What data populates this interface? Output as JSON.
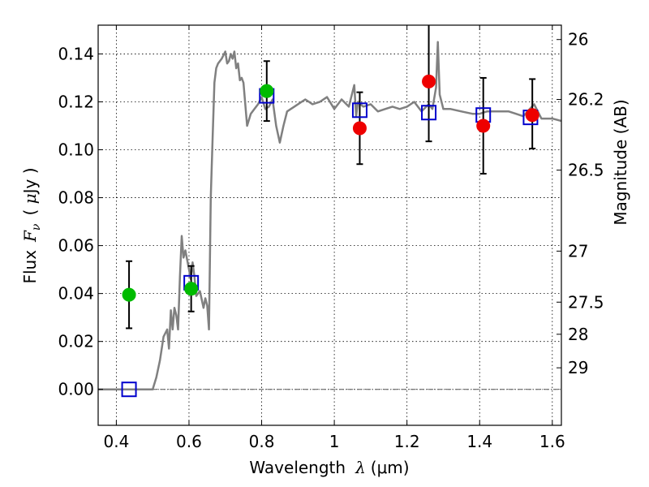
{
  "chart_data": {
    "type": "scatter",
    "xlabel": "Wavelength  λ (μm)",
    "ylabel": "Flux  F_ν  ( μJy )",
    "ylabel_parts": {
      "prefix": "Flux",
      "var": "F",
      "sub": "ν",
      "unit_open": "( ",
      "unit_mu": "μ",
      "unit_rest": "Jy )"
    },
    "xlabel_parts": {
      "prefix": "Wavelength",
      "var": "λ",
      "unit": "(μm)"
    },
    "y2label": "Magnitude (AB)",
    "xlim": [
      0.35,
      1.625
    ],
    "ylim": [
      -0.015,
      0.152
    ],
    "grid": true,
    "x_ticks": [
      {
        "value": 0.4,
        "label": "0.4"
      },
      {
        "value": 0.6,
        "label": "0.6"
      },
      {
        "value": 0.8,
        "label": "0.8"
      },
      {
        "value": 1.0,
        "label": "1"
      },
      {
        "value": 1.2,
        "label": "1.2"
      },
      {
        "value": 1.4,
        "label": "1.4"
      },
      {
        "value": 1.6,
        "label": "1.6"
      }
    ],
    "y_ticks": [
      {
        "value": 0.0,
        "label": "0.00"
      },
      {
        "value": 0.02,
        "label": "0.02"
      },
      {
        "value": 0.04,
        "label": "0.04"
      },
      {
        "value": 0.06,
        "label": "0.06"
      },
      {
        "value": 0.08,
        "label": "0.08"
      },
      {
        "value": 0.1,
        "label": "0.10"
      },
      {
        "value": 0.12,
        "label": "0.12"
      },
      {
        "value": 0.14,
        "label": "0.14"
      }
    ],
    "mag_ticks": [
      {
        "flux": 0.146,
        "label": "26"
      },
      {
        "flux": 0.121,
        "label": "26.2"
      },
      {
        "flux": 0.0915,
        "label": "26.5"
      },
      {
        "flux": 0.0577,
        "label": "27"
      },
      {
        "flux": 0.0364,
        "label": "27.5"
      },
      {
        "flux": 0.023,
        "label": "28"
      },
      {
        "flux": 0.009,
        "label": "29"
      }
    ],
    "colors": {
      "model": "#808080",
      "model_points": "#0000cc",
      "green_points": "#00bb00",
      "red_points": "#ee0000",
      "error_bars": "#000000",
      "zero_line": "#555555"
    },
    "series": [
      {
        "kind": "model_spectrum",
        "x": [
          0.35,
          0.4,
          0.45,
          0.5,
          0.51,
          0.52,
          0.53,
          0.54,
          0.545,
          0.55,
          0.555,
          0.56,
          0.565,
          0.57,
          0.575,
          0.58,
          0.585,
          0.59,
          0.6,
          0.605,
          0.61,
          0.615,
          0.62,
          0.63,
          0.64,
          0.645,
          0.65,
          0.655,
          0.66,
          0.665,
          0.67,
          0.675,
          0.68,
          0.69,
          0.7,
          0.705,
          0.71,
          0.715,
          0.72,
          0.725,
          0.73,
          0.735,
          0.74,
          0.745,
          0.75,
          0.76,
          0.77,
          0.78,
          0.79,
          0.8,
          0.81,
          0.82,
          0.83,
          0.84,
          0.85,
          0.86,
          0.87,
          0.88,
          0.89,
          0.9,
          0.92,
          0.94,
          0.96,
          0.98,
          1.0,
          1.02,
          1.04,
          1.055,
          1.06,
          1.065,
          1.08,
          1.1,
          1.12,
          1.14,
          1.16,
          1.18,
          1.2,
          1.22,
          1.24,
          1.26,
          1.27,
          1.28,
          1.285,
          1.29,
          1.3,
          1.32,
          1.35,
          1.38,
          1.4,
          1.42,
          1.45,
          1.48,
          1.5,
          1.52,
          1.55,
          1.57,
          1.6,
          1.625
        ],
        "y": [
          0.0,
          0.0,
          0.0,
          0.0,
          0.005,
          0.012,
          0.022,
          0.025,
          0.017,
          0.033,
          0.025,
          0.034,
          0.031,
          0.025,
          0.047,
          0.064,
          0.055,
          0.058,
          0.05,
          0.046,
          0.053,
          0.047,
          0.039,
          0.041,
          0.034,
          0.038,
          0.035,
          0.025,
          0.08,
          0.105,
          0.128,
          0.134,
          0.136,
          0.138,
          0.141,
          0.136,
          0.137,
          0.14,
          0.138,
          0.141,
          0.134,
          0.136,
          0.129,
          0.13,
          0.128,
          0.11,
          0.115,
          0.117,
          0.119,
          0.122,
          0.117,
          0.118,
          0.121,
          0.11,
          0.103,
          0.11,
          0.116,
          0.117,
          0.118,
          0.119,
          0.121,
          0.119,
          0.12,
          0.122,
          0.117,
          0.121,
          0.118,
          0.127,
          0.114,
          0.12,
          0.118,
          0.119,
          0.116,
          0.117,
          0.118,
          0.117,
          0.118,
          0.12,
          0.116,
          0.119,
          0.117,
          0.126,
          0.145,
          0.123,
          0.117,
          0.117,
          0.116,
          0.115,
          0.115,
          0.116,
          0.116,
          0.116,
          0.115,
          0.114,
          0.119,
          0.113,
          0.113,
          0.112
        ]
      },
      {
        "kind": "model_photometry",
        "marker": "open-square",
        "x": [
          0.435,
          0.606,
          0.814,
          1.07,
          1.26,
          1.41,
          1.54
        ],
        "y": [
          0.0,
          0.0445,
          0.1225,
          0.1165,
          0.1155,
          0.1145,
          0.1135
        ]
      },
      {
        "kind": "observed_green",
        "marker": "filled-circle",
        "x": [
          0.435,
          0.606,
          0.814
        ],
        "y": [
          0.0395,
          0.042,
          0.1245
        ],
        "yerr_low": [
          0.0255,
          0.0325,
          0.112
        ],
        "yerr_high": [
          0.0535,
          0.0515,
          0.137
        ]
      },
      {
        "kind": "observed_red",
        "marker": "filled-circle",
        "x": [
          1.07,
          1.26,
          1.41,
          1.545
        ],
        "y": [
          0.109,
          0.1285,
          0.11,
          0.1145
        ],
        "yerr_low": [
          0.094,
          0.1035,
          0.09,
          0.1005
        ],
        "yerr_high": [
          0.124,
          0.153,
          0.13,
          0.1295
        ]
      }
    ]
  }
}
